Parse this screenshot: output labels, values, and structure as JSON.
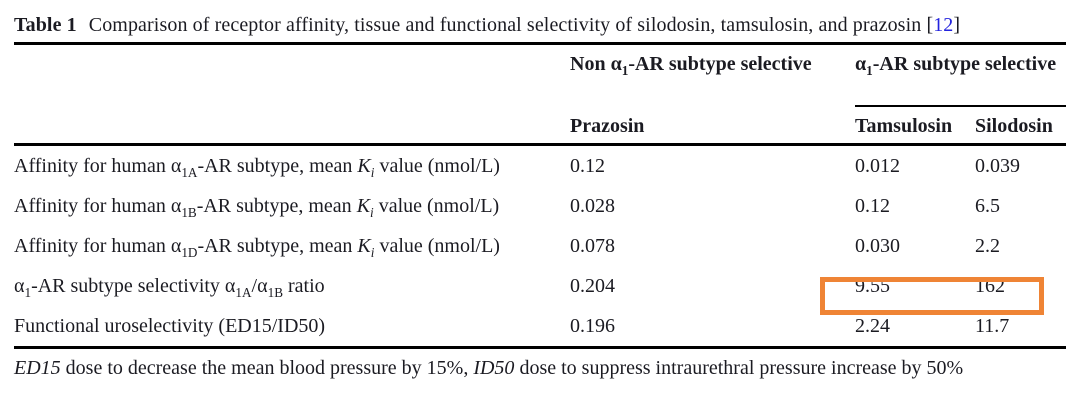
{
  "caption": {
    "label": "Table 1",
    "text": "Comparison of receptor affinity, tissue and functional selectivity of silodosin, tamsulosin, and prazosin",
    "citation_open": "[",
    "citation": "12",
    "citation_close": "]"
  },
  "table": {
    "column_groups": [
      {
        "label": "Non α_{1}-AR subtype selective"
      },
      {
        "label": "α_{1}-AR subtype selective"
      }
    ],
    "columns": [
      "Prazosin",
      "Tamsulosin",
      "Silodosin"
    ],
    "rows": [
      {
        "label": "Affinity for human α_{1A}-AR subtype, mean *K_{i}* value (nmol/L)",
        "values": [
          "0.12",
          "0.012",
          "0.039"
        ]
      },
      {
        "label": "Affinity for human α_{1B}-AR subtype, mean *K_{i}* value (nmol/L)",
        "values": [
          "0.028",
          "0.12",
          "6.5"
        ]
      },
      {
        "label": "Affinity for human α_{1D}-AR subtype, mean *K_{i}* value (nmol/L)",
        "values": [
          "0.078",
          "0.030",
          "2.2"
        ]
      },
      {
        "label": "α_{1}-AR subtype selectivity α_{1A}/α_{1B} ratio",
        "values": [
          "0.204",
          "9.55",
          "162"
        ],
        "highlighted": true
      },
      {
        "label": "Functional uroselectivity (ED15/ID50)",
        "values": [
          "0.196",
          "2.24",
          "11.7"
        ]
      }
    ]
  },
  "footnote": {
    "text": "*ED15* dose to decrease the mean blood pressure by 15%, *ID50*  dose to suppress intraurethral pressure increase by 50%"
  },
  "colors": {
    "background": "#ffffff",
    "text": "#1b1b22",
    "rule": "#000000",
    "citation": "#2323de",
    "highlight_border": "#EF8435"
  }
}
